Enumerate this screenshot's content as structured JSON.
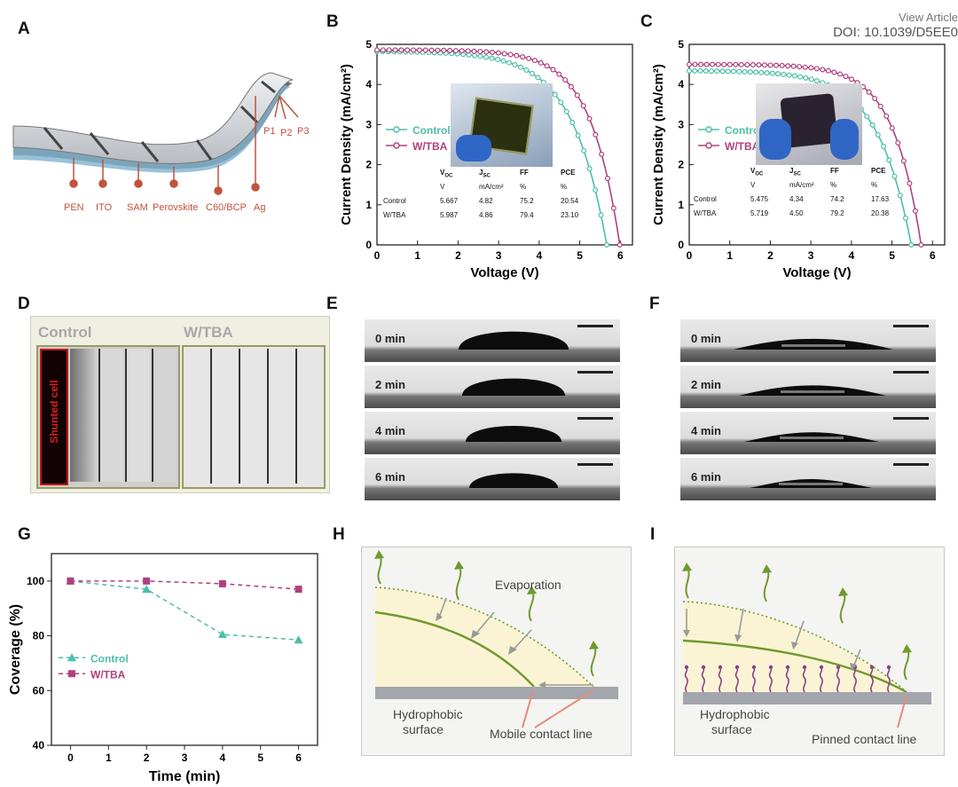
{
  "header": {
    "view_article": "View Article",
    "doi": "DOI: 10.1039/D5EE0"
  },
  "panel_labels": {
    "A": "A",
    "B": "B",
    "C": "C",
    "D": "D",
    "E": "E",
    "F": "F",
    "G": "G",
    "H": "H",
    "I": "I"
  },
  "panel_a": {
    "layers": [
      "PEN",
      "ITO",
      "SAM",
      "Perovskite",
      "C60/BCP",
      "Ag"
    ],
    "scribes": [
      "P1",
      "P2",
      "P3"
    ]
  },
  "table_b": {
    "header": [
      "V_OC",
      "J_SC",
      "FF",
      "PCE"
    ],
    "units": [
      "V",
      "mA/cm²",
      "%",
      "%"
    ],
    "rows": [
      {
        "name": "Control",
        "voc": "5.667",
        "jsc": "4.82",
        "ff": "75.2",
        "pce": "20.54"
      },
      {
        "name": "W/TBA",
        "voc": "5.987",
        "jsc": "4.86",
        "ff": "79.4",
        "pce": "23.10"
      }
    ]
  },
  "table_c": {
    "header": [
      "V_OC",
      "J_SC",
      "FF",
      "PCE"
    ],
    "units": [
      "V",
      "mA/cm²",
      "%",
      "%"
    ],
    "rows": [
      {
        "name": "Control",
        "voc": "5.475",
        "jsc": "4.34",
        "ff": "74.2",
        "pce": "17.63"
      },
      {
        "name": "W/TBA",
        "voc": "5.719",
        "jsc": "4.50",
        "ff": "79.2",
        "pce": "20.38"
      }
    ]
  },
  "panel_d": {
    "control": "Control",
    "tba": "W/TBA",
    "shunted": "Shunted cell"
  },
  "panel_e": {
    "times": [
      "0 min",
      "2 min",
      "4 min",
      "6 min"
    ]
  },
  "panel_f": {
    "times": [
      "0 min",
      "2 min",
      "4 min",
      "6 min"
    ]
  },
  "panel_h": {
    "evaporation": "Evaporation",
    "surface_l1": "Hydrophobic",
    "surface_l2": "surface",
    "contact": "Mobile contact line"
  },
  "panel_i": {
    "surface_l1": "Hydrophobic",
    "surface_l2": "surface",
    "contact": "Pinned contact line"
  },
  "colors": {
    "control": "#4bbfa8",
    "tba": "#b0407e",
    "annotation": "#c0533e",
    "droplet_fill": "#fbf4d4",
    "green_arrow": "#6f9a2e"
  },
  "chart_data": [
    {
      "id": "B",
      "type": "line",
      "xlabel": "Voltage (V)",
      "ylabel": "Current Density (mA/cm²)",
      "xlim": [
        0,
        6.3
      ],
      "ylim": [
        0,
        5
      ],
      "xticks": [
        0,
        1,
        2,
        3,
        4,
        5,
        6
      ],
      "yticks": [
        0,
        1,
        2,
        3,
        4,
        5
      ],
      "legend": "center-left",
      "series": [
        {
          "name": "Control",
          "color": "#4bbfa8",
          "jsc": 4.82,
          "voc": 5.667,
          "knee": 0.15
        },
        {
          "name": "W/TBA",
          "color": "#b0407e",
          "jsc": 4.86,
          "voc": 5.987,
          "knee": 0.12
        }
      ]
    },
    {
      "id": "C",
      "type": "line",
      "xlabel": "Voltage (V)",
      "ylabel": "Current Density (mA/cm²)",
      "xlim": [
        0,
        6.3
      ],
      "ylim": [
        0,
        5
      ],
      "xticks": [
        0,
        1,
        2,
        3,
        4,
        5,
        6
      ],
      "yticks": [
        0,
        1,
        2,
        3,
        4,
        5
      ],
      "legend": "center-left",
      "series": [
        {
          "name": "Control",
          "color": "#4bbfa8",
          "jsc": 4.34,
          "voc": 5.475,
          "knee": 0.15
        },
        {
          "name": "W/TBA",
          "color": "#b0407e",
          "jsc": 4.5,
          "voc": 5.719,
          "knee": 0.12
        }
      ]
    },
    {
      "id": "G",
      "type": "line",
      "xlabel": "Time (min)",
      "ylabel": "Coverage (%)",
      "xlim": [
        -0.5,
        6.5
      ],
      "ylim": [
        40,
        110
      ],
      "xticks": [
        0,
        1,
        2,
        3,
        4,
        5,
        6
      ],
      "yticks": [
        40,
        60,
        80,
        100
      ],
      "legend": "center-left",
      "x": [
        0,
        2,
        4,
        6
      ],
      "series": [
        {
          "name": "Control",
          "color": "#4bbfa8",
          "marker": "triangle",
          "values": [
            100,
            97,
            80.5,
            78.5
          ]
        },
        {
          "name": "W/TBA",
          "color": "#b0407e",
          "marker": "square",
          "values": [
            100,
            100,
            99,
            97
          ]
        }
      ]
    }
  ]
}
